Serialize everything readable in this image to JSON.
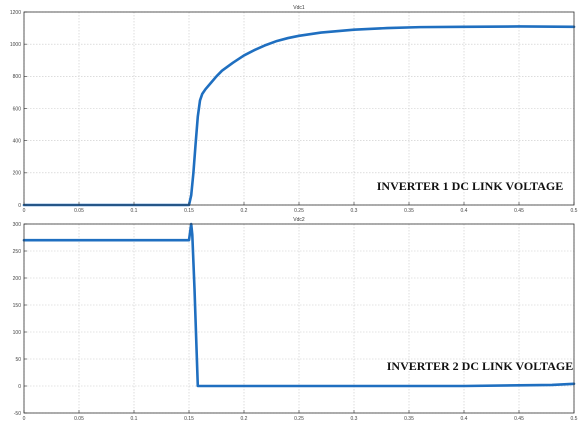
{
  "chart_data": [
    {
      "type": "line",
      "title": "Vdc1",
      "annotation": "INVERTER 1 DC LINK VOLTAGE",
      "grid": true,
      "xlim": [
        0,
        0.5
      ],
      "ylim": [
        0,
        1200
      ],
      "xticks": [
        0,
        0.05,
        0.1,
        0.15,
        0.2,
        0.25,
        0.3,
        0.35,
        0.4,
        0.45,
        0.5
      ],
      "xtick_labels": [
        "0",
        "0.05",
        "0.1",
        "0.15",
        "0.2",
        "0.25",
        "0.3",
        "0.35",
        "0.4",
        "0.45",
        "0.5"
      ],
      "yticks": [
        0,
        200,
        400,
        600,
        800,
        1000,
        1200
      ],
      "ytick_labels": [
        "0",
        "200",
        "400",
        "600",
        "800",
        "1000",
        "1200"
      ],
      "series": [
        {
          "color": "#1f6fc0",
          "x": [
            0,
            0.15,
            0.152,
            0.154,
            0.156,
            0.158,
            0.16,
            0.162,
            0.165,
            0.17,
            0.175,
            0.18,
            0.19,
            0.2,
            0.21,
            0.22,
            0.23,
            0.24,
            0.25,
            0.27,
            0.3,
            0.33,
            0.36,
            0.4,
            0.45,
            0.5
          ],
          "y": [
            0,
            0,
            60,
            200,
            380,
            550,
            650,
            690,
            720,
            760,
            800,
            835,
            885,
            930,
            965,
            995,
            1020,
            1038,
            1052,
            1072,
            1090,
            1100,
            1106,
            1108,
            1110,
            1108
          ]
        }
      ]
    },
    {
      "type": "line",
      "title": "Vdc2",
      "annotation": "INVERTER 2 DC LINK VOLTAGE",
      "grid": true,
      "xlim": [
        0,
        0.5
      ],
      "ylim": [
        -50,
        300
      ],
      "xticks": [
        0,
        0.05,
        0.1,
        0.15,
        0.2,
        0.25,
        0.3,
        0.35,
        0.4,
        0.45,
        0.5
      ],
      "xtick_labels": [
        "0",
        "0.05",
        "0.1",
        "0.15",
        "0.2",
        "0.25",
        "0.3",
        "0.35",
        "0.4",
        "0.45",
        "0.5"
      ],
      "yticks": [
        -50,
        0,
        50,
        100,
        150,
        200,
        250,
        300
      ],
      "ytick_labels": [
        "-50",
        "0",
        "50",
        "100",
        "150",
        "200",
        "250",
        "300"
      ],
      "series": [
        {
          "color": "#1f6fc0",
          "x": [
            0,
            0.15,
            0.151,
            0.152,
            0.153,
            0.155,
            0.157,
            0.158,
            0.16,
            0.2,
            0.3,
            0.4,
            0.48,
            0.5
          ],
          "y": [
            270,
            270,
            285,
            300,
            280,
            180,
            60,
            0,
            0,
            0,
            0,
            0,
            2,
            4
          ]
        }
      ]
    }
  ]
}
